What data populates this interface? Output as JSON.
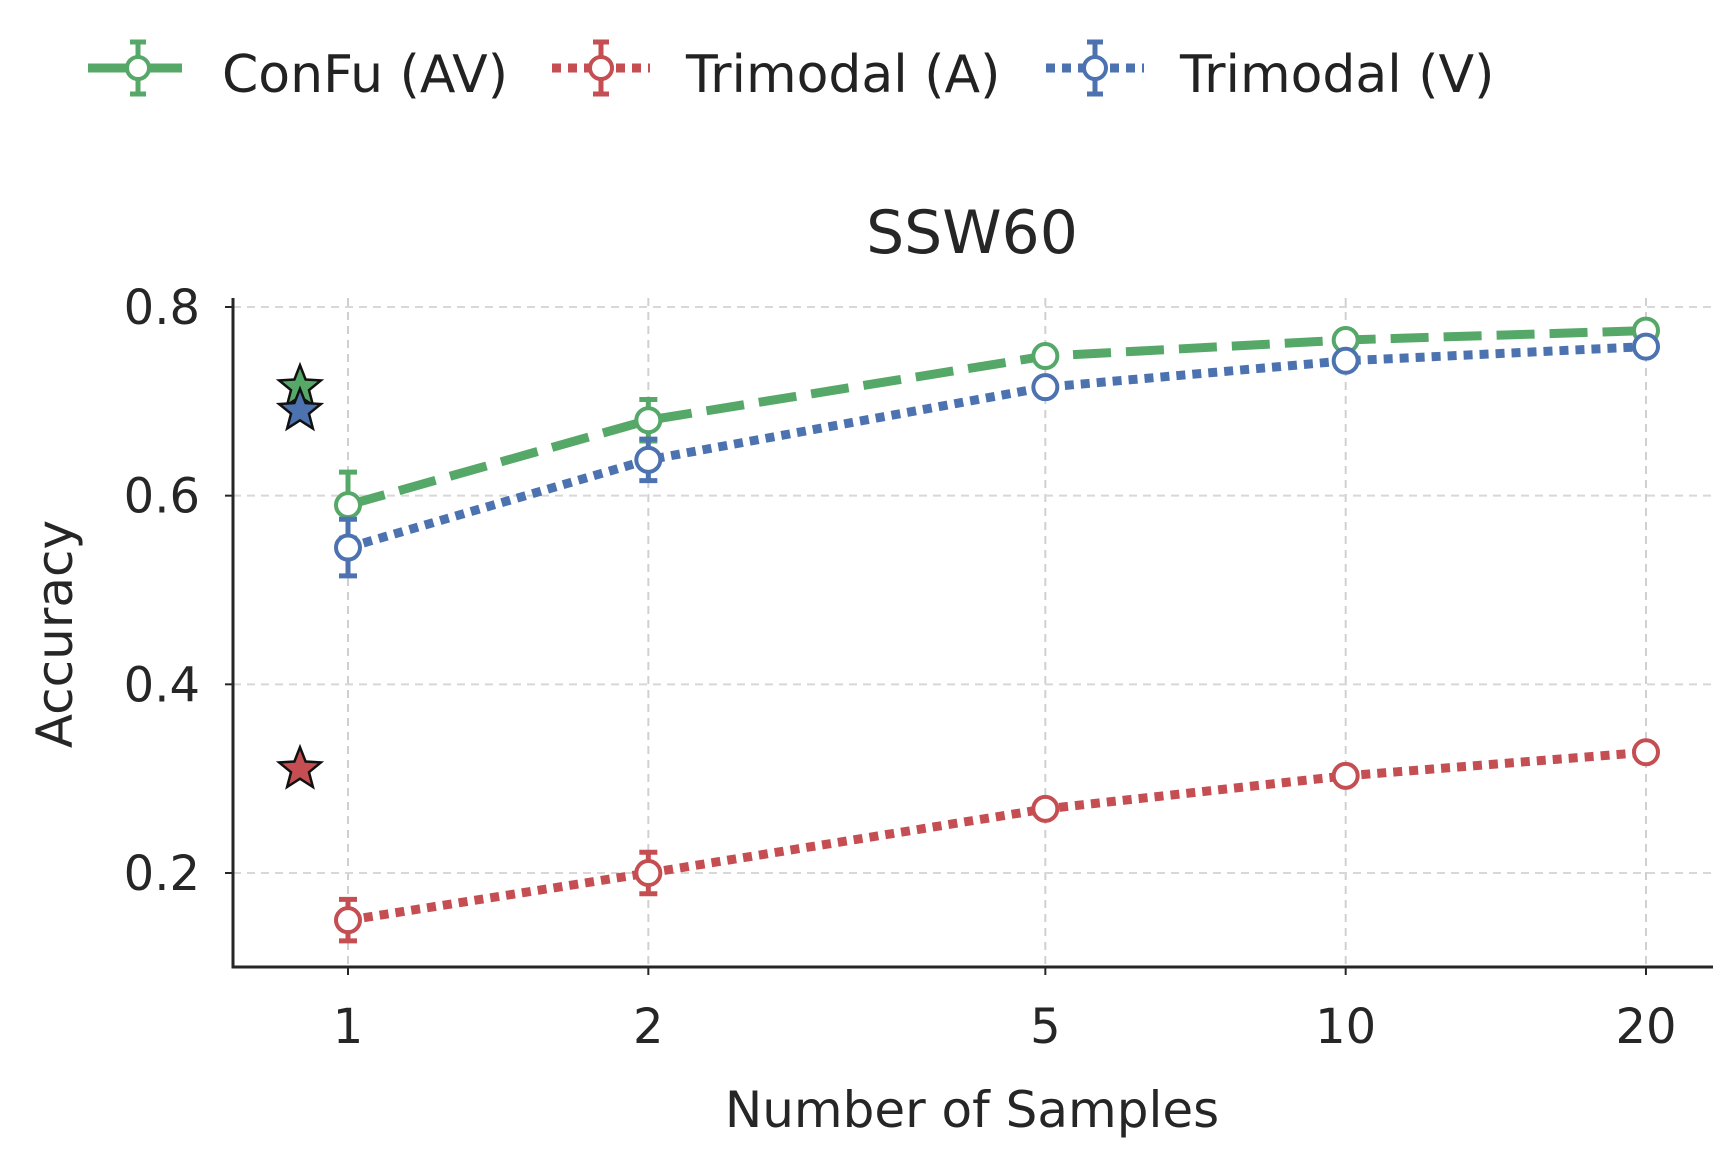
{
  "chart_data": {
    "type": "line",
    "title": "SSW60",
    "xlabel": "Number of Samples",
    "ylabel": "Accuracy",
    "x": [
      1,
      2,
      5,
      10,
      20
    ],
    "x_scale": "log",
    "xticks": [
      "1",
      "2",
      "5",
      "10",
      "20"
    ],
    "yticks": [
      "0.2",
      "0.4",
      "0.6",
      "0.8"
    ],
    "ylim": [
      0.1,
      0.81
    ],
    "grid": true,
    "legend_position": "top-center",
    "series": [
      {
        "name": "ConFu (AV)",
        "color": "#55a868",
        "style": "dashed",
        "values": [
          0.59,
          0.68,
          0.748,
          0.765,
          0.775
        ],
        "errors": [
          0.035,
          0.022,
          0.008,
          0.006,
          0.005
        ],
        "star": 0.715
      },
      {
        "name": "Trimodal (A)",
        "color": "#c44e52",
        "style": "dotted",
        "values": [
          0.15,
          0.2,
          0.268,
          0.303,
          0.328
        ],
        "errors": [
          0.022,
          0.022,
          0.007,
          0.006,
          0.005
        ],
        "star": 0.31
      },
      {
        "name": "Trimodal (V)",
        "color": "#4c72b0",
        "style": "dotted",
        "values": [
          0.545,
          0.638,
          0.715,
          0.743,
          0.758
        ],
        "errors": [
          0.03,
          0.022,
          0.008,
          0.006,
          0.005
        ],
        "star": 0.69
      }
    ]
  }
}
